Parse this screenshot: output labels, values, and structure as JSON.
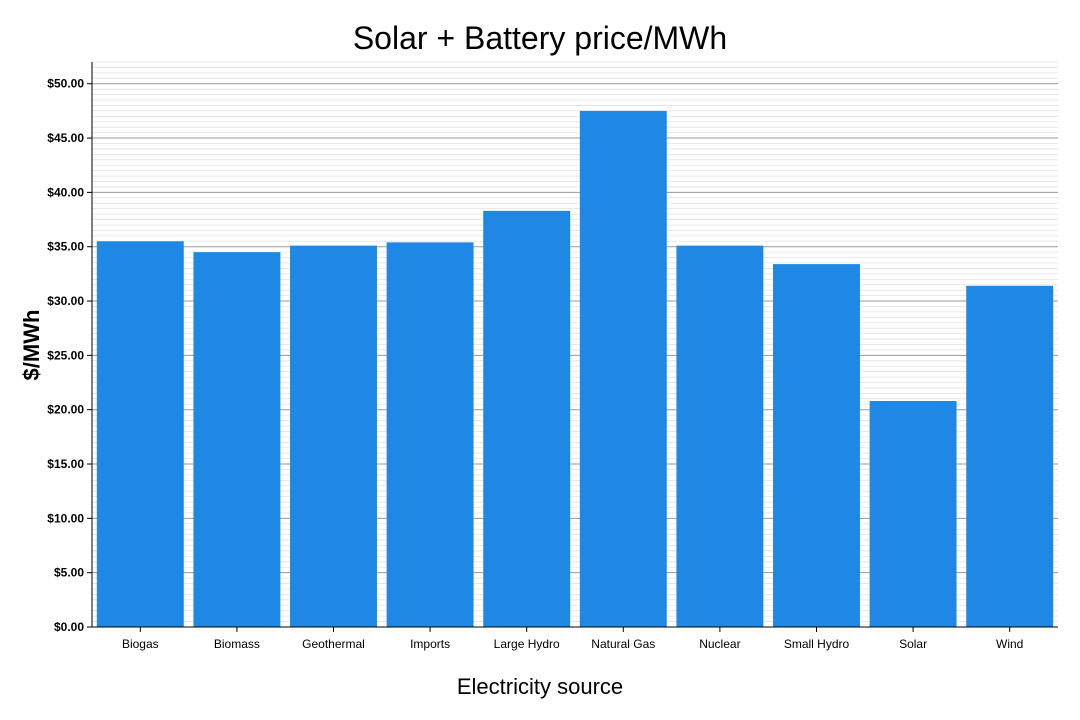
{
  "chart_data": {
    "type": "bar",
    "title": "Solar + Battery price/MWh",
    "xlabel": "Electricity source",
    "ylabel": "$/MWh",
    "categories": [
      "Biogas",
      "Biomass",
      "Geothermal",
      "Imports",
      "Large Hydro",
      "Natural Gas",
      "Nuclear",
      "Small Hydro",
      "Solar",
      "Wind"
    ],
    "values": [
      35.5,
      34.5,
      35.1,
      35.4,
      38.3,
      47.5,
      35.1,
      33.4,
      20.8,
      31.4
    ],
    "ylim": [
      0,
      52
    ],
    "yticks": [
      "$0.00",
      "$5.00",
      "$10.00",
      "$15.00",
      "$20.00",
      "$25.00",
      "$30.00",
      "$35.00",
      "$40.00",
      "$45.00",
      "$50.00"
    ],
    "grid": true,
    "bar_color": "#1f88e5"
  }
}
